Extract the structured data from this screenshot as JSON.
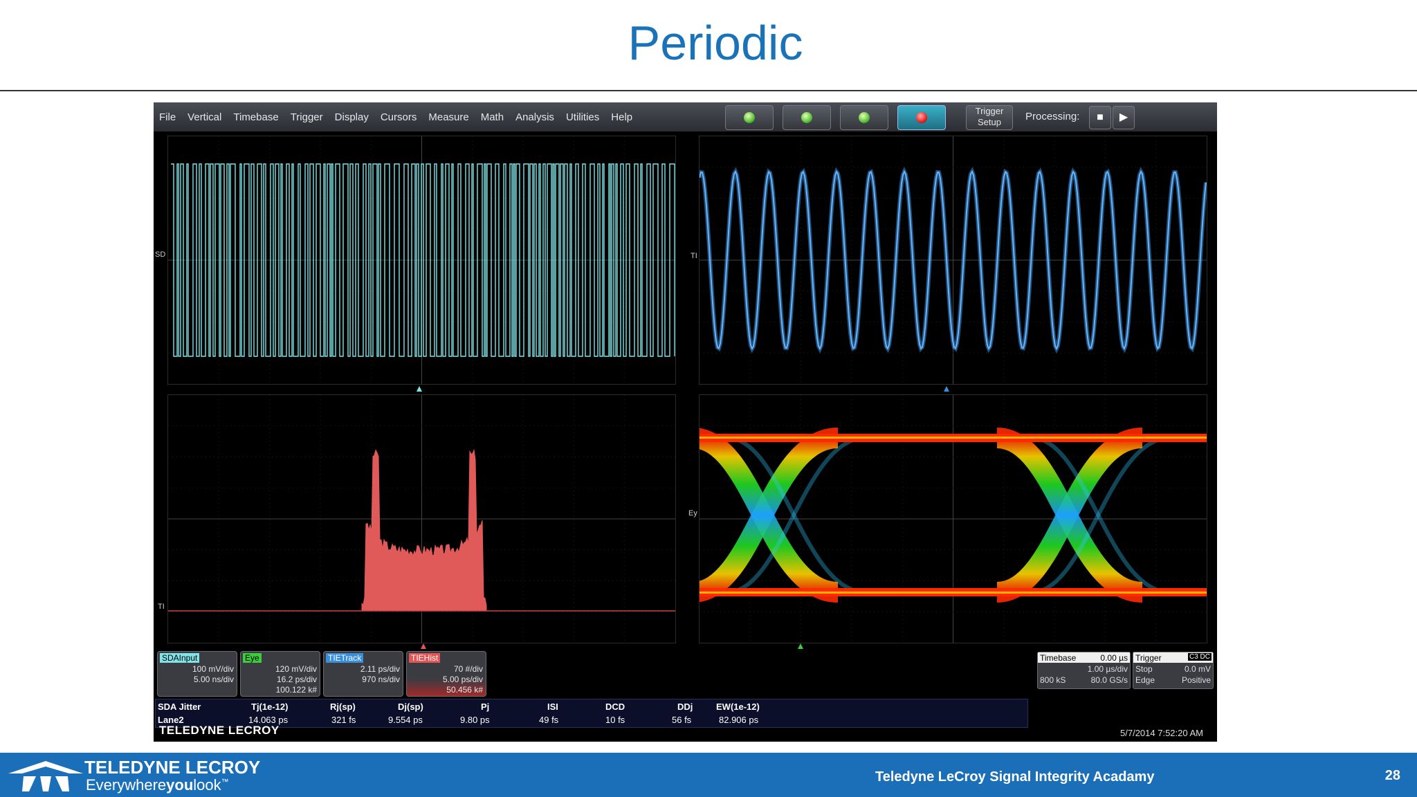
{
  "slide": {
    "title": "Periodic",
    "footer_text": "Teledyne LeCroy Signal Integrity Acadamy",
    "page_number": "28"
  },
  "brand": {
    "name": "TELEDYNE LECROY",
    "tagline_pre": "Everywhere",
    "tagline_bold": "you",
    "tagline_post": "look",
    "tm": "™"
  },
  "menu": [
    "File",
    "Vertical",
    "Timebase",
    "Trigger",
    "Display",
    "Cursors",
    "Measure",
    "Math",
    "Analysis",
    "Utilities",
    "Help"
  ],
  "toolbar": {
    "trigger_setup_l1": "Trigger",
    "trigger_setup_l2": "Setup",
    "processing": "Processing:",
    "icons": [
      "auto-trigger-icon",
      "normal-trigger-icon",
      "single-trigger-icon",
      "stop-trigger-icon"
    ],
    "stop_glyph": "■",
    "play_glyph": "▶"
  },
  "channels": {
    "sda": {
      "marker": "SD",
      "tag": "SDAInput",
      "l1": "100 mV/div",
      "l2": "5.00 ns/div",
      "color": "#7fe3e8"
    },
    "eye": {
      "marker": "Ey",
      "tag": "Eye",
      "l1": "120 mV/div",
      "l2": "16.2 ps/div",
      "l3": "100.122 k#",
      "color": "#3ccc3c"
    },
    "tietrack": {
      "marker": "TI",
      "tag": "TIETrack",
      "l1": "2.11 ps/div",
      "l2": "970 ns/div",
      "color": "#3a8fd9"
    },
    "tiehist": {
      "marker": "TI",
      "tag": "TIEHist",
      "l1": "70 #/div",
      "l2": "5.00 ps/div",
      "l3": "50.456 k#",
      "color": "#e05555"
    }
  },
  "timebase": {
    "title": "Timebase",
    "delay": "0.00 µs",
    "per_div": "1.00 µs/div",
    "samples": "800 kS",
    "rate": "80.0 GS/s"
  },
  "trigger": {
    "title": "Trigger",
    "badge": "C3 DC",
    "mode": "Stop",
    "level": "0.0 mV",
    "type": "Edge",
    "slope": "Positive"
  },
  "measurements": {
    "headers": [
      "SDA Jitter",
      "Tj(1e-12)",
      "Rj(sp)",
      "Dj(sp)",
      "Pj",
      "ISI",
      "DCD",
      "DDj",
      "EW(1e-12)"
    ],
    "row": [
      "Lane2",
      "14.063 ps",
      "321 fs",
      "9.554 ps",
      "9.80 ps",
      "49 fs",
      "10 fs",
      "56 fs",
      "82.906 ps"
    ]
  },
  "scope": {
    "brand": "TELEDYNE LECROY",
    "timestamp": "5/7/2014 7:52:20 AM"
  }
}
